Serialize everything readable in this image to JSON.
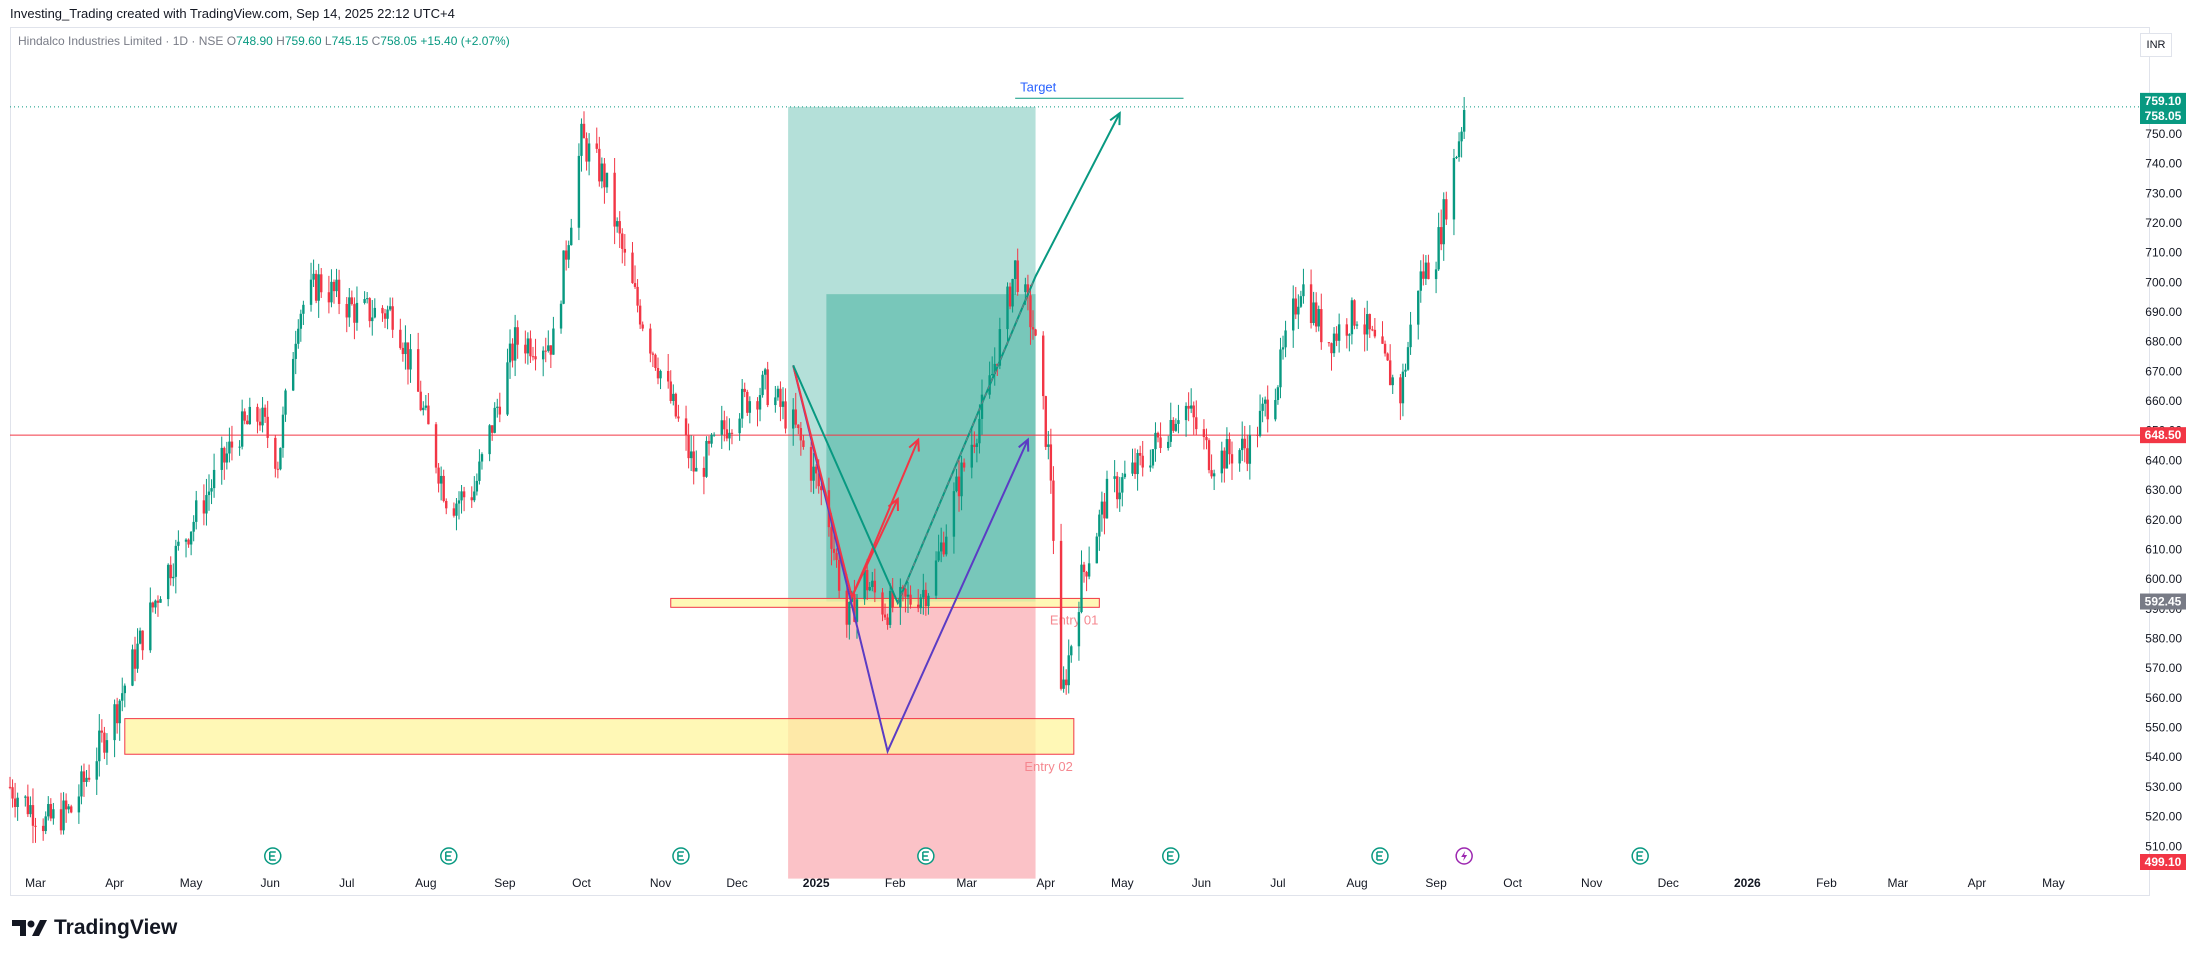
{
  "header": {
    "caption": "Investing_Trading created with TradingView.com, Sep 14, 2025 22:12 UTC+4"
  },
  "legend": {
    "symbol": "Hindalco Industries Limited · 1D · NSE",
    "open_label": "O",
    "open": "748.90",
    "high_label": "H",
    "high": "759.60",
    "low_label": "L",
    "low": "745.15",
    "close_label": "C",
    "close": "758.05",
    "change": "+15.40 (+2.07%)"
  },
  "currency": "INR",
  "footer": {
    "brand": "TradingView"
  },
  "colors": {
    "up": "#089981",
    "down": "#f23645",
    "profit_zone": "#089981",
    "loss_zone": "#f23645",
    "highlight": "#fff59d",
    "pattern_purple": "#5b3cc4",
    "target": "#2962ff"
  },
  "chart_data": {
    "type": "candlestick",
    "symbol": "Hindalco Industries Limited",
    "interval": "1D",
    "exchange": "NSE",
    "currency": "INR",
    "x_range": [
      "2024-02-20",
      "2026-05-31"
    ],
    "ylim": [
      502,
      785
    ],
    "y_ticks": [
      510,
      520,
      530,
      540,
      550,
      560,
      570,
      580,
      590,
      600,
      610,
      620,
      630,
      640,
      650,
      660,
      670,
      680,
      690,
      700,
      710,
      720,
      730,
      740,
      750
    ],
    "x_ticks": [
      {
        "label": "Mar",
        "date": "2024-03-01"
      },
      {
        "label": "Apr",
        "date": "2024-04-01"
      },
      {
        "label": "May",
        "date": "2024-05-01"
      },
      {
        "label": "Jun",
        "date": "2024-06-01"
      },
      {
        "label": "Jul",
        "date": "2024-07-01"
      },
      {
        "label": "Aug",
        "date": "2024-08-01"
      },
      {
        "label": "Sep",
        "date": "2024-09-01"
      },
      {
        "label": "Oct",
        "date": "2024-10-01"
      },
      {
        "label": "Nov",
        "date": "2024-11-01"
      },
      {
        "label": "Dec",
        "date": "2024-12-01"
      },
      {
        "label": "2025",
        "date": "2025-01-01"
      },
      {
        "label": "Feb",
        "date": "2025-02-01"
      },
      {
        "label": "Mar",
        "date": "2025-03-01"
      },
      {
        "label": "Apr",
        "date": "2025-04-01"
      },
      {
        "label": "May",
        "date": "2025-05-01"
      },
      {
        "label": "Jun",
        "date": "2025-06-01"
      },
      {
        "label": "Jul",
        "date": "2025-07-01"
      },
      {
        "label": "Aug",
        "date": "2025-08-01"
      },
      {
        "label": "Sep",
        "date": "2025-09-01"
      },
      {
        "label": "Oct",
        "date": "2025-10-01"
      },
      {
        "label": "Nov",
        "date": "2025-11-01"
      },
      {
        "label": "Dec",
        "date": "2025-12-01"
      },
      {
        "label": "2026",
        "date": "2026-01-01"
      },
      {
        "label": "Feb",
        "date": "2026-02-01"
      },
      {
        "label": "Mar",
        "date": "2026-03-01"
      },
      {
        "label": "Apr",
        "date": "2026-04-01"
      },
      {
        "label": "May",
        "date": "2026-05-01"
      }
    ],
    "price_path": [
      [
        "2024-02-20",
        530
      ],
      [
        "2024-03-05",
        518
      ],
      [
        "2024-03-15",
        522
      ],
      [
        "2024-04-01",
        555
      ],
      [
        "2024-04-20",
        600
      ],
      [
        "2024-05-05",
        625
      ],
      [
        "2024-05-20",
        650
      ],
      [
        "2024-05-28",
        655
      ],
      [
        "2024-06-04",
        640
      ],
      [
        "2024-06-12",
        690
      ],
      [
        "2024-06-20",
        700
      ],
      [
        "2024-07-05",
        690
      ],
      [
        "2024-07-20",
        690
      ],
      [
        "2024-08-02",
        650
      ],
      [
        "2024-08-10",
        625
      ],
      [
        "2024-08-20",
        630
      ],
      [
        "2024-09-05",
        680
      ],
      [
        "2024-09-20",
        680
      ],
      [
        "2024-10-01",
        748
      ],
      [
        "2024-10-10",
        735
      ],
      [
        "2024-10-20",
        700
      ],
      [
        "2024-11-05",
        660
      ],
      [
        "2024-11-15",
        635
      ],
      [
        "2024-12-01",
        658
      ],
      [
        "2024-12-12",
        665
      ],
      [
        "2024-12-23",
        652
      ],
      [
        "2025-01-05",
        625
      ],
      [
        "2025-01-13",
        585
      ],
      [
        "2025-01-20",
        600
      ],
      [
        "2025-01-28",
        590
      ],
      [
        "2025-02-05",
        592
      ],
      [
        "2025-02-15",
        598
      ],
      [
        "2025-02-25",
        630
      ],
      [
        "2025-03-10",
        665
      ],
      [
        "2025-03-20",
        705
      ],
      [
        "2025-03-27",
        685
      ],
      [
        "2025-04-03",
        635
      ],
      [
        "2025-04-07",
        558
      ],
      [
        "2025-04-15",
        600
      ],
      [
        "2025-04-25",
        628
      ],
      [
        "2025-05-10",
        640
      ],
      [
        "2025-05-25",
        660
      ],
      [
        "2025-06-05",
        640
      ],
      [
        "2025-06-20",
        645
      ],
      [
        "2025-07-01",
        668
      ],
      [
        "2025-07-10",
        700
      ],
      [
        "2025-07-20",
        680
      ],
      [
        "2025-08-01",
        690
      ],
      [
        "2025-08-12",
        672
      ],
      [
        "2025-08-18",
        662
      ],
      [
        "2025-08-25",
        700
      ],
      [
        "2025-09-01",
        710
      ],
      [
        "2025-09-08",
        740
      ],
      [
        "2025-09-12",
        758
      ]
    ],
    "horizontal_lines": [
      {
        "price": 648.5,
        "label": "648.50"
      },
      {
        "price": 759.1,
        "label": "759.10",
        "style": "dotted"
      }
    ],
    "price_labels": [
      {
        "price": 759.1,
        "label": "759.10"
      },
      {
        "price": 758.05,
        "label": "758.05"
      },
      {
        "price": 648.5,
        "label": "648.50"
      },
      {
        "price": 592.45,
        "label": "592.45"
      },
      {
        "price": 499.1,
        "label": "499.10"
      }
    ],
    "position_tool": {
      "start": "2024-12-21",
      "end": "2025-03-28",
      "entry": 592.45,
      "target": 759.1,
      "stop": 499.1,
      "inner_start": "2025-01-05",
      "inner_top": 696
    },
    "zones": [
      {
        "label": "Entry 01",
        "start": "2024-11-05",
        "end": "2025-04-22",
        "top": 593.5,
        "bottom": 590.5
      },
      {
        "label": "Entry 02",
        "start": "2024-04-05",
        "end": "2025-04-12",
        "top": 553,
        "bottom": 541
      }
    ],
    "target_line": {
      "label": "Target",
      "start": "2025-03-20",
      "end": "2025-05-25",
      "price": 762
    },
    "pattern_lines": [
      {
        "color": "purple",
        "points": [
          [
            "2024-12-23",
            672
          ],
          [
            "2025-01-29",
            542
          ],
          [
            "2025-03-25",
            647
          ]
        ]
      },
      {
        "color": "red",
        "points": [
          [
            "2024-12-23",
            672
          ],
          [
            "2025-01-15",
            594
          ],
          [
            "2025-01-22",
            608
          ],
          [
            "2025-02-10",
            647
          ]
        ]
      },
      {
        "color": "red",
        "points": [
          [
            "2025-01-15",
            594
          ],
          [
            "2025-02-02",
            627
          ]
        ]
      },
      {
        "color": "green",
        "points": [
          [
            "2024-12-23",
            672
          ],
          [
            "2025-02-02",
            592
          ],
          [
            "2025-03-28",
            702
          ],
          [
            "2025-04-30",
            757
          ]
        ]
      }
    ],
    "events": [
      {
        "date": "2024-06-02",
        "type": "E"
      },
      {
        "date": "2024-08-10",
        "type": "E"
      },
      {
        "date": "2024-11-09",
        "type": "E"
      },
      {
        "date": "2025-02-13",
        "type": "E"
      },
      {
        "date": "2025-05-20",
        "type": "E"
      },
      {
        "date": "2025-08-10",
        "type": "E"
      },
      {
        "date": "2025-09-12",
        "type": "split"
      },
      {
        "date": "2025-11-20",
        "type": "E"
      }
    ]
  }
}
